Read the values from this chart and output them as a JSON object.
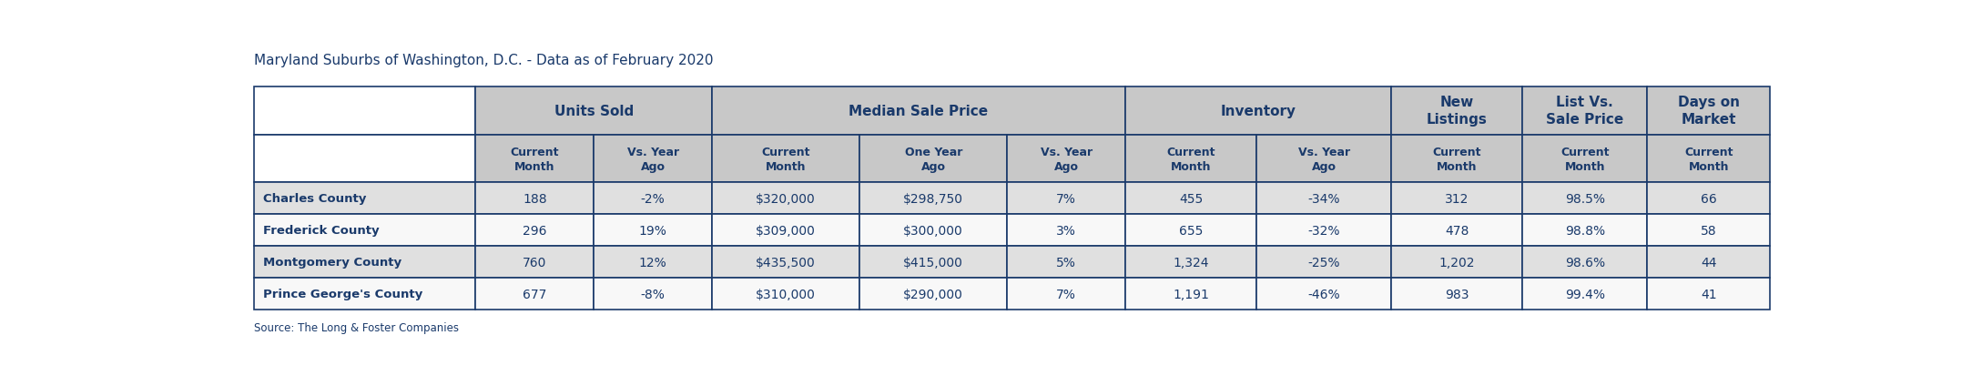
{
  "title": "Maryland Suburbs of Washington, D.C. - Data as of February 2020",
  "source": "Source: The Long & Foster Companies",
  "header_bg": "#c8c8c8",
  "subheader_bg": "#c8c8c8",
  "row_bg_alt": "#e0e0e0",
  "row_bg_white": "#f8f8f8",
  "header_text_color": "#1a3a6b",
  "data_text_color": "#1a3a6b",
  "border_color": "#1a3a6b",
  "title_color": "#1a3a6b",
  "source_color": "#1a3a6b",
  "group_labels": [
    "Units Sold",
    "Median Sale Price",
    "Inventory",
    "New\nListings",
    "List Vs.\nSale Price",
    "Days on\nMarket"
  ],
  "group_spans": [
    2,
    3,
    2,
    1,
    1,
    1
  ],
  "subheaders": [
    "Current\nMonth",
    "Vs. Year\nAgo",
    "Current\nMonth",
    "One Year\nAgo",
    "Vs. Year\nAgo",
    "Current\nMonth",
    "Vs. Year\nAgo",
    "Current\nMonth",
    "Current\nMonth",
    "Current\nMonth"
  ],
  "row_labels": [
    "Charles County",
    "Frederick County",
    "Montgomery County",
    "Prince George's County"
  ],
  "rows": [
    [
      "188",
      "-2%",
      "$320,000",
      "$298,750",
      "7%",
      "455",
      "-34%",
      "312",
      "98.5%",
      "66"
    ],
    [
      "296",
      "19%",
      "$309,000",
      "$300,000",
      "3%",
      "655",
      "-32%",
      "478",
      "98.8%",
      "58"
    ],
    [
      "760",
      "12%",
      "$435,500",
      "$415,000",
      "5%",
      "1,324",
      "-25%",
      "1,202",
      "98.6%",
      "44"
    ],
    [
      "677",
      "-8%",
      "$310,000",
      "$290,000",
      "7%",
      "1,191",
      "-46%",
      "983",
      "99.4%",
      "41"
    ]
  ],
  "col_props": [
    0.135,
    0.072,
    0.072,
    0.09,
    0.09,
    0.072,
    0.08,
    0.082,
    0.08,
    0.076,
    0.075
  ]
}
